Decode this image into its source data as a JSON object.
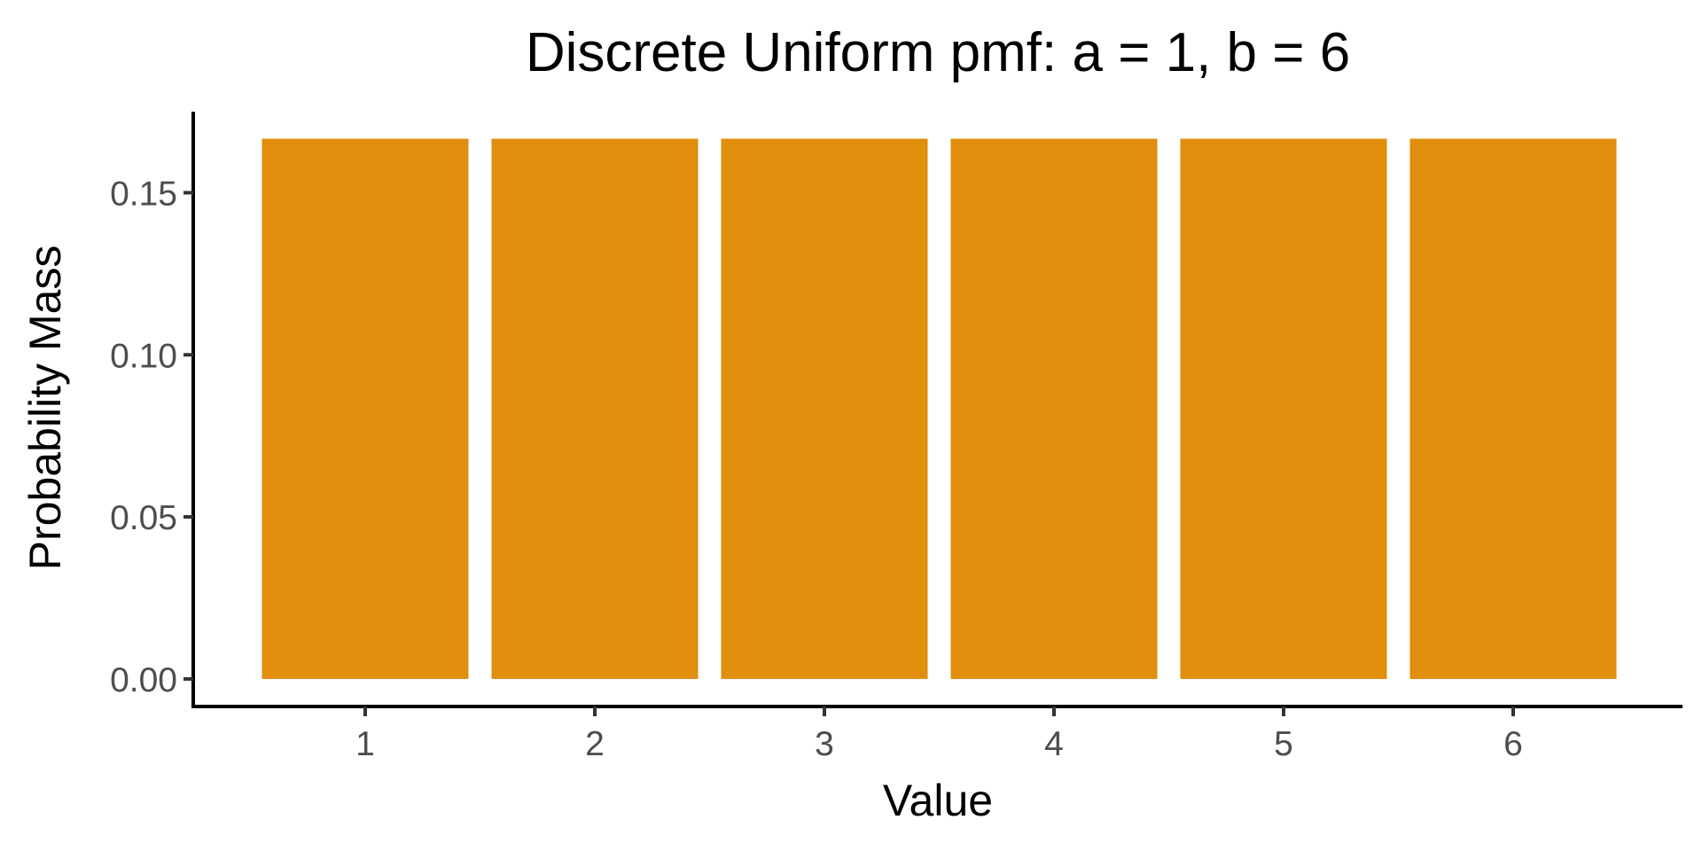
{
  "chart_data": {
    "type": "bar",
    "title": "Discrete Uniform pmf: a = 1, b = 6",
    "xlabel": "Value",
    "ylabel": "Probability Mass",
    "categories": [
      "1",
      "2",
      "3",
      "4",
      "5",
      "6"
    ],
    "values": [
      0.16667,
      0.16667,
      0.16667,
      0.16667,
      0.16667,
      0.16667
    ],
    "ylim": [
      -0.0085,
      0.175
    ],
    "yticks": [
      0.0,
      0.05,
      0.1,
      0.15
    ],
    "ytick_labels": [
      "0.00",
      "0.05",
      "0.10",
      "0.15"
    ],
    "grid": false,
    "legend": "none",
    "bar_color": "#E08E0B",
    "axis_color": "#000000",
    "tick_label_color": "#4D4D4D"
  }
}
